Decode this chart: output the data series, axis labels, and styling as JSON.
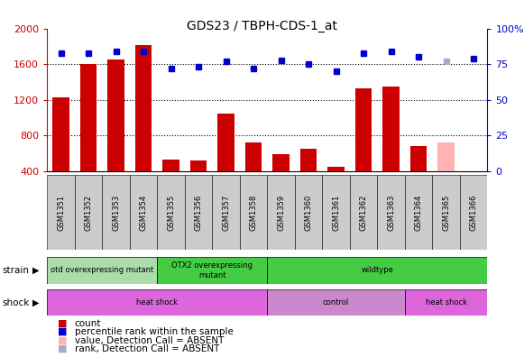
{
  "title": "GDS23 / TBPH-CDS-1_at",
  "samples": [
    "GSM1351",
    "GSM1352",
    "GSM1353",
    "GSM1354",
    "GSM1355",
    "GSM1356",
    "GSM1357",
    "GSM1358",
    "GSM1359",
    "GSM1360",
    "GSM1361",
    "GSM1362",
    "GSM1363",
    "GSM1364",
    "GSM1365",
    "GSM1366"
  ],
  "counts": [
    1230,
    1600,
    1650,
    1820,
    530,
    520,
    1050,
    720,
    590,
    650,
    450,
    1330,
    1350,
    680,
    720,
    380
  ],
  "counts_absent": [
    false,
    false,
    false,
    false,
    false,
    false,
    false,
    false,
    false,
    false,
    false,
    false,
    false,
    false,
    true,
    false
  ],
  "percentile_ranks": [
    83,
    83,
    84,
    84,
    72,
    73,
    77,
    72,
    78,
    75,
    70,
    83,
    84,
    80,
    77,
    79
  ],
  "ranks_absent": [
    false,
    false,
    false,
    false,
    false,
    false,
    false,
    false,
    false,
    false,
    false,
    false,
    false,
    false,
    true,
    false
  ],
  "ylim_left": [
    400,
    2000
  ],
  "ylim_right": [
    0,
    100
  ],
  "yticks_left": [
    400,
    800,
    1200,
    1600,
    2000
  ],
  "yticks_right": [
    0,
    25,
    50,
    75,
    100
  ],
  "bar_color": "#cc0000",
  "bar_color_absent": "#ffb3b3",
  "dot_color": "#0000cc",
  "dot_color_absent": "#aaaacc",
  "strain_groups": [
    {
      "label": "otd overexpressing mutant",
      "start": 0,
      "end": 4,
      "color": "#aaddaa"
    },
    {
      "label": "OTX2 overexpressing\nmutant",
      "start": 4,
      "end": 8,
      "color": "#44cc44"
    },
    {
      "label": "wildtype",
      "start": 8,
      "end": 16,
      "color": "#44cc44"
    }
  ],
  "shock_groups": [
    {
      "label": "heat shock",
      "start": 0,
      "end": 8,
      "color": "#dd66dd"
    },
    {
      "label": "control",
      "start": 8,
      "end": 13,
      "color": "#cc88cc"
    },
    {
      "label": "heat shock",
      "start": 13,
      "end": 16,
      "color": "#dd66dd"
    }
  ],
  "legend_items": [
    {
      "label": "count",
      "color": "#cc0000"
    },
    {
      "label": "percentile rank within the sample",
      "color": "#0000cc"
    },
    {
      "label": "value, Detection Call = ABSENT",
      "color": "#ffb3b3"
    },
    {
      "label": "rank, Detection Call = ABSENT",
      "color": "#aaaacc"
    }
  ],
  "bg_color": "white",
  "left_axis_color": "#cc0000",
  "right_axis_color": "#0000cc",
  "gridline_values": [
    800,
    1200,
    1600
  ]
}
